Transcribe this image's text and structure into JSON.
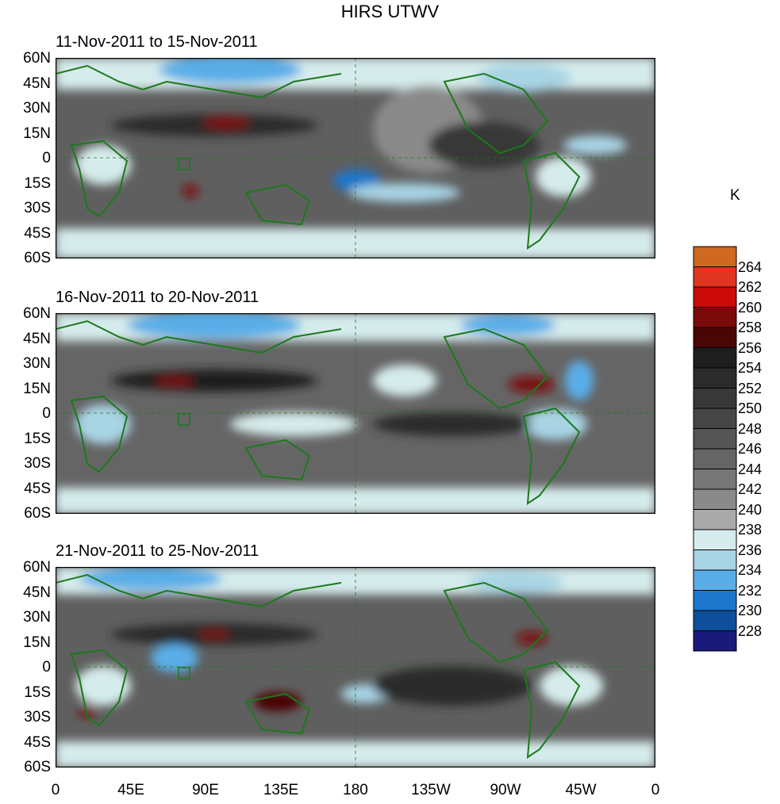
{
  "title": "HIRS UTWV",
  "unit": "K",
  "panels": [
    {
      "period": "11-Nov-2011 to 15-Nov-2011"
    },
    {
      "period": "16-Nov-2011 to 20-Nov-2011"
    },
    {
      "period": "21-Nov-2011 to 25-Nov-2011"
    }
  ],
  "lat_labels": [
    "60N",
    "45N",
    "30N",
    "15N",
    "0",
    "15S",
    "30S",
    "45S",
    "60S"
  ],
  "lon_labels": [
    "0",
    "45E",
    "90E",
    "135E",
    "180",
    "135W",
    "90W",
    "45W",
    "0"
  ],
  "colorbar": {
    "labels": [
      "264",
      "262",
      "260",
      "258",
      "256",
      "254",
      "252",
      "250",
      "248",
      "246",
      "244",
      "242",
      "240",
      "238",
      "236",
      "234",
      "232",
      "230",
      "228"
    ],
    "colors": [
      "#cf6820",
      "#e03520",
      "#cc0a0a",
      "#7a0a0a",
      "#4a0505",
      "#1e1e1e",
      "#2b2b2b",
      "#383838",
      "#464646",
      "#555555",
      "#656565",
      "#777777",
      "#8a8a8a",
      "#aaaaaa",
      "#d6ecec",
      "#a8d4e4",
      "#5aaee8",
      "#1c76cc",
      "#0e4e9a",
      "#1a1a7a"
    ]
  },
  "colors": {
    "coast": "#1a7a1a"
  }
}
